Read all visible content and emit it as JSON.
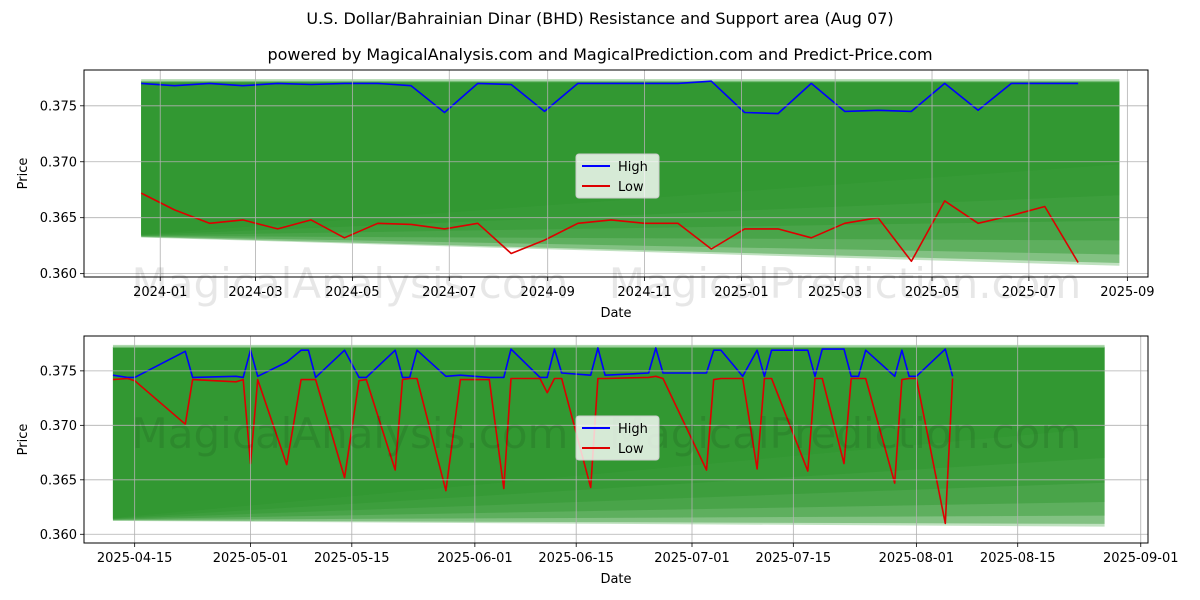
{
  "title": "U.S. Dollar/Bahrainian Dinar (BHD) Resistance and Support area (Aug 07)",
  "subtitle": "powered by MagicalAnalysis.com and MagicalPrediction.com and Predict-Price.com",
  "watermarks": [
    "MagicalAnalysis.com",
    "MagicalPrediction.com"
  ],
  "colors": {
    "high": "#0000ff",
    "low": "#dd0000",
    "band": "#2e962e",
    "band_light": "#8cc98c",
    "grid": "#b0b0b0"
  },
  "legend": {
    "high": "High",
    "low": "Low",
    "placement": "center"
  },
  "chart_data": [
    {
      "type": "line",
      "xlabel": "Date",
      "ylabel": "Price",
      "x_ticks": [
        "2024-01",
        "2024-03",
        "2024-05",
        "2024-07",
        "2024-09",
        "2024-11",
        "2025-01",
        "2025-03",
        "2025-05",
        "2025-07",
        "2025-09"
      ],
      "y_ticks": [
        "0.360",
        "0.365",
        "0.370",
        "0.375"
      ],
      "xlim": [
        "2023-11-14",
        "2025-09-14"
      ],
      "ylim": [
        0.3597,
        0.3782
      ],
      "grid": true,
      "support_resistance_band": {
        "x_start": "2023-12-20",
        "x_end": "2025-08-27",
        "top": 0.3772,
        "bottom_start": 0.3635,
        "bottom_end": 0.3607
      },
      "series": [
        {
          "name": "High",
          "x": [
            "2023-12-20",
            "2024-01-10",
            "2024-02-01",
            "2024-02-22",
            "2024-03-15",
            "2024-04-05",
            "2024-04-26",
            "2024-05-17",
            "2024-06-07",
            "2024-06-28",
            "2024-07-19",
            "2024-08-09",
            "2024-08-30",
            "2024-09-20",
            "2024-10-11",
            "2024-11-01",
            "2024-11-22",
            "2024-12-13",
            "2025-01-03",
            "2025-01-24",
            "2025-02-14",
            "2025-03-07",
            "2025-03-28",
            "2025-04-18",
            "2025-05-09",
            "2025-05-30",
            "2025-06-20",
            "2025-07-11",
            "2025-08-01"
          ],
          "y": [
            0.377,
            0.3768,
            0.377,
            0.3768,
            0.377,
            0.3769,
            0.377,
            0.377,
            0.3768,
            0.3744,
            0.377,
            0.3769,
            0.3745,
            0.377,
            0.377,
            0.377,
            0.377,
            0.3772,
            0.3744,
            0.3743,
            0.377,
            0.3745,
            0.3746,
            0.3745,
            0.377,
            0.3746,
            0.377,
            0.377,
            0.377
          ]
        },
        {
          "name": "Low",
          "x": [
            "2023-12-20",
            "2024-01-10",
            "2024-02-01",
            "2024-02-22",
            "2024-03-15",
            "2024-04-05",
            "2024-04-26",
            "2024-05-17",
            "2024-06-07",
            "2024-06-28",
            "2024-07-19",
            "2024-08-09",
            "2024-08-30",
            "2024-09-20",
            "2024-10-11",
            "2024-11-01",
            "2024-11-22",
            "2024-12-13",
            "2025-01-03",
            "2025-01-24",
            "2025-02-14",
            "2025-03-07",
            "2025-03-28",
            "2025-04-18",
            "2025-05-09",
            "2025-05-30",
            "2025-06-20",
            "2025-07-11",
            "2025-08-01"
          ],
          "y": [
            0.3672,
            0.3657,
            0.3645,
            0.3648,
            0.364,
            0.3648,
            0.3632,
            0.3645,
            0.3644,
            0.364,
            0.3645,
            0.3618,
            0.363,
            0.3645,
            0.3648,
            0.3645,
            0.3645,
            0.3622,
            0.364,
            0.364,
            0.3632,
            0.3645,
            0.365,
            0.3611,
            0.3665,
            0.3645,
            0.3652,
            0.366,
            0.361
          ]
        }
      ]
    },
    {
      "type": "line",
      "xlabel": "Date",
      "ylabel": "Price",
      "x_ticks": [
        "2025-04-15",
        "2025-05-01",
        "2025-05-15",
        "2025-06-01",
        "2025-06-15",
        "2025-07-01",
        "2025-07-15",
        "2025-08-01",
        "2025-08-15",
        "2025-09-01"
      ],
      "y_ticks": [
        "0.360",
        "0.365",
        "0.370",
        "0.375"
      ],
      "xlim": [
        "2025-04-08",
        "2025-09-02"
      ],
      "ylim": [
        0.3592,
        0.3782
      ],
      "grid": true,
      "support_resistance_band": {
        "x_start": "2025-04-12",
        "x_end": "2025-08-27",
        "top": 0.3772,
        "bottom_start": 0.3615,
        "bottom_end": 0.3607
      },
      "series": [
        {
          "name": "High",
          "x": [
            "2025-04-12",
            "2025-04-14",
            "2025-04-15",
            "2025-04-22",
            "2025-04-23",
            "2025-04-29",
            "2025-04-30",
            "2025-05-01",
            "2025-05-02",
            "2025-05-06",
            "2025-05-08",
            "2025-05-09",
            "2025-05-10",
            "2025-05-14",
            "2025-05-16",
            "2025-05-17",
            "2025-05-21",
            "2025-05-22",
            "2025-05-23",
            "2025-05-24",
            "2025-05-28",
            "2025-05-30",
            "2025-06-03",
            "2025-06-05",
            "2025-06-06",
            "2025-06-10",
            "2025-06-11",
            "2025-06-12",
            "2025-06-13",
            "2025-06-17",
            "2025-06-18",
            "2025-06-19",
            "2025-06-25",
            "2025-06-26",
            "2025-06-27",
            "2025-07-03",
            "2025-07-04",
            "2025-07-05",
            "2025-07-08",
            "2025-07-10",
            "2025-07-11",
            "2025-07-12",
            "2025-07-17",
            "2025-07-18",
            "2025-07-19",
            "2025-07-22",
            "2025-07-23",
            "2025-07-24",
            "2025-07-25",
            "2025-07-29",
            "2025-07-30",
            "2025-07-31",
            "2025-08-01",
            "2025-08-05",
            "2025-08-06"
          ],
          "y": [
            0.3746,
            0.3744,
            0.3744,
            0.3768,
            0.3744,
            0.3745,
            0.3744,
            0.3769,
            0.3745,
            0.3758,
            0.3769,
            0.3769,
            0.3744,
            0.3769,
            0.3744,
            0.3744,
            0.3769,
            0.3744,
            0.3744,
            0.3769,
            0.3745,
            0.3746,
            0.3744,
            0.3744,
            0.377,
            0.3744,
            0.3744,
            0.377,
            0.3748,
            0.3746,
            0.3771,
            0.3746,
            0.3748,
            0.3771,
            0.3748,
            0.3748,
            0.3769,
            0.3769,
            0.3745,
            0.3769,
            0.3745,
            0.3769,
            0.3769,
            0.3745,
            0.377,
            0.377,
            0.3745,
            0.3745,
            0.3769,
            0.3745,
            0.3769,
            0.3745,
            0.3745,
            0.377,
            0.3745
          ]
        },
        {
          "name": "Low",
          "x": [
            "2025-04-12",
            "2025-04-14",
            "2025-04-15",
            "2025-04-22",
            "2025-04-23",
            "2025-04-29",
            "2025-04-30",
            "2025-05-01",
            "2025-05-02",
            "2025-05-06",
            "2025-05-08",
            "2025-05-09",
            "2025-05-10",
            "2025-05-14",
            "2025-05-16",
            "2025-05-17",
            "2025-05-21",
            "2025-05-22",
            "2025-05-23",
            "2025-05-24",
            "2025-05-28",
            "2025-05-30",
            "2025-06-03",
            "2025-06-05",
            "2025-06-06",
            "2025-06-10",
            "2025-06-11",
            "2025-06-12",
            "2025-06-13",
            "2025-06-17",
            "2025-06-18",
            "2025-06-19",
            "2025-06-25",
            "2025-06-26",
            "2025-06-27",
            "2025-07-03",
            "2025-07-04",
            "2025-07-05",
            "2025-07-08",
            "2025-07-10",
            "2025-07-11",
            "2025-07-12",
            "2025-07-17",
            "2025-07-18",
            "2025-07-19",
            "2025-07-22",
            "2025-07-23",
            "2025-07-24",
            "2025-07-25",
            "2025-07-29",
            "2025-07-30",
            "2025-07-31",
            "2025-08-01",
            "2025-08-05",
            "2025-08-06"
          ],
          "y": [
            0.3742,
            0.3743,
            0.3741,
            0.3701,
            0.3742,
            0.374,
            0.3742,
            0.3665,
            0.3742,
            0.3664,
            0.3742,
            0.3742,
            0.3742,
            0.3652,
            0.3741,
            0.3742,
            0.3659,
            0.3742,
            0.3743,
            0.3743,
            0.364,
            0.3742,
            0.3742,
            0.3642,
            0.3743,
            0.3743,
            0.373,
            0.3743,
            0.3743,
            0.3643,
            0.3743,
            0.3743,
            0.3744,
            0.3745,
            0.3743,
            0.3659,
            0.3742,
            0.3743,
            0.3743,
            0.366,
            0.3743,
            0.3743,
            0.3658,
            0.3743,
            0.3743,
            0.3665,
            0.3743,
            0.3743,
            0.3743,
            0.3647,
            0.3742,
            0.3743,
            0.3743,
            0.361,
            0.3743
          ]
        }
      ]
    }
  ]
}
